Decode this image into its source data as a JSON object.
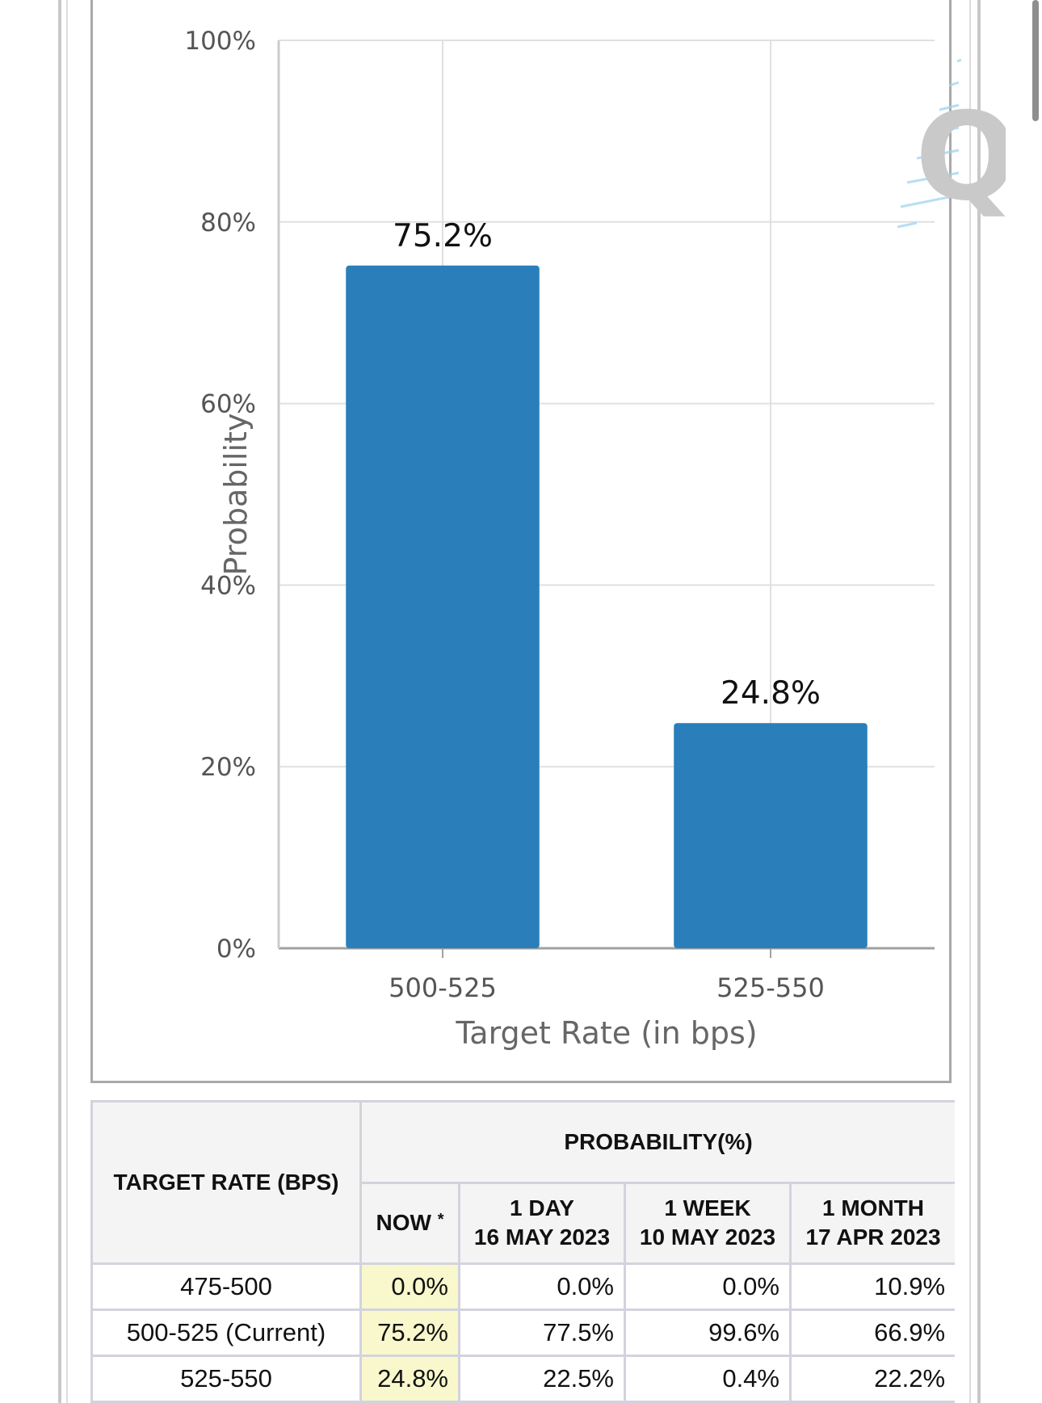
{
  "chart_data": {
    "type": "bar",
    "categories": [
      "500-525",
      "525-550"
    ],
    "values": [
      75.2,
      24.8
    ],
    "data_labels": [
      "75.2%",
      "24.8%"
    ],
    "xlabel": "Target Rate (in bps)",
    "ylabel": "Probability",
    "ylim": [
      0,
      100
    ],
    "yticks": [
      0,
      20,
      40,
      60,
      80,
      100
    ],
    "ytick_labels": [
      "0%",
      "20%",
      "40%",
      "60%",
      "80%",
      "100%"
    ],
    "grid": true,
    "bar_color": "#2a7fba"
  },
  "table": {
    "rate_header": "TARGET RATE (BPS)",
    "prob_header": "PROBABILITY(%)",
    "now_label": "NOW",
    "now_mark": "*",
    "day_label": "1 DAY",
    "day_date": "16 MAY 2023",
    "week_label": "1 WEEK",
    "week_date": "10 MAY 2023",
    "month_label": "1 MONTH",
    "month_date": "17 APR 2023",
    "rows": [
      {
        "rate": "475-500",
        "now": "0.0%",
        "day": "0.0%",
        "week": "0.0%",
        "month": "10.9%"
      },
      {
        "rate": "500-525 (Current)",
        "now": "75.2%",
        "day": "77.5%",
        "week": "99.6%",
        "month": "66.9%"
      },
      {
        "rate": "525-550",
        "now": "24.8%",
        "day": "22.5%",
        "week": "0.4%",
        "month": "22.2%"
      }
    ]
  },
  "colors": {
    "highlight": "#f8f8cc",
    "border": "#d3d3de",
    "header_bg": "#f4f4f4"
  },
  "watermark_icon": "cme-fedwatch-q-logo"
}
